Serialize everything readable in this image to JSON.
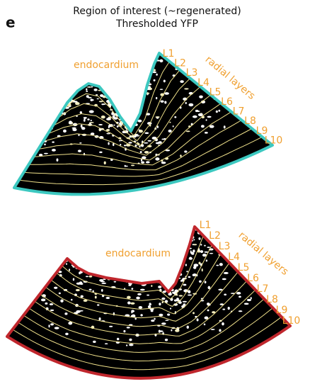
{
  "panel_label": "e",
  "title": [
    "Region of interest (~regenerated)",
    "Thresholded YFP"
  ],
  "panels": [
    {
      "region_label": "endocardium",
      "layers_label": "radial layers",
      "layers": [
        "L1",
        "L2",
        "L3",
        "L4",
        "L5",
        "L6",
        "L7",
        "L8",
        "L9",
        "L10"
      ]
    },
    {
      "region_label": "endocardium",
      "layers_label": "radial layers",
      "layers": [
        "L1",
        "L2",
        "L3",
        "L4",
        "L5",
        "L6",
        "L7",
        "L8",
        "L9",
        "L10"
      ]
    }
  ]
}
